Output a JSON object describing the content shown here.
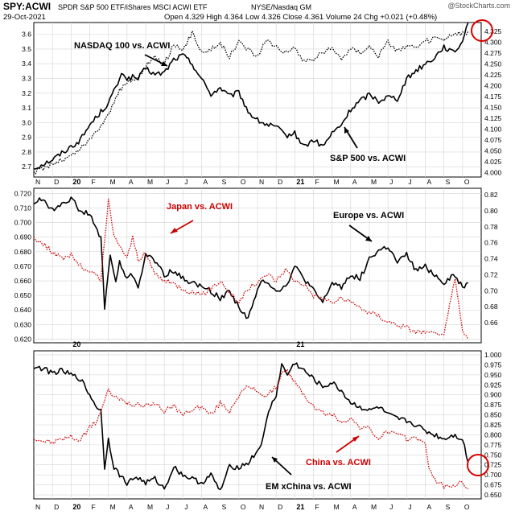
{
  "header": {
    "symbol": "SPY:ACWI",
    "description": "SPDR S&P 500 ETF/iShares MSCI ACWI ETF",
    "exchange": "NYSE/Nasdaq GM",
    "date": "29-Oct-2021",
    "open_label": "Open",
    "open": "4.329",
    "high_label": "High",
    "high": "4.364",
    "low_label": "Low",
    "low": "4.326",
    "close_label": "Close",
    "close": "4.361",
    "volume_label": "Volume",
    "volume": "24",
    "chg_label": "Chg",
    "chg": "+0.021 (+0.48%)",
    "watermark": "@StockCharts.com"
  },
  "colors": {
    "black_series": "#000000",
    "dotted_black": "#000000",
    "dotted_red": "#cc0000",
    "circle": "#dd0000",
    "grid": "#d4d4d4"
  },
  "x_axis": {
    "months": [
      "N",
      "D",
      "20",
      "F",
      "M",
      "A",
      "M",
      "J",
      "J",
      "A",
      "S",
      "O",
      "N",
      "D",
      "21",
      "F",
      "M",
      "A",
      "M",
      "J",
      "J",
      "A",
      "S",
      "O"
    ],
    "year_labels": [
      "20",
      "21"
    ]
  },
  "chart_data": [
    {
      "type": "line",
      "panel": "top",
      "title": "SPY:ACWI",
      "left_axis": {
        "ticks": [
          "2.7",
          "2.8",
          "2.9",
          "3.0",
          "3.1",
          "3.2",
          "3.3",
          "3.4",
          "3.5",
          "3.6"
        ],
        "range": [
          2.63,
          3.68
        ]
      },
      "right_axis": {
        "ticks": [
          "4.000",
          "4.025",
          "4.050",
          "4.075",
          "4.100",
          "4.125",
          "4.150",
          "4.175",
          "4.200",
          "4.225",
          "4.250",
          "4.275",
          "4.300",
          "4.325"
        ],
        "range": [
          3.99,
          4.345
        ]
      },
      "annotations": [
        "NASDAQ 100 vs. ACWI",
        "S&P 500 vs. ACWI"
      ],
      "series": [
        {
          "name": "S&P 500 vs. ACWI",
          "axis": "right",
          "style": "solid-black",
          "x": [
            0,
            1,
            2,
            2.5,
            3,
            4,
            4.5,
            4.8,
            5,
            5.3,
            5.6,
            6,
            6.5,
            7,
            7.5,
            8,
            8.5,
            9,
            9.5,
            10,
            10.5,
            11,
            11.5,
            12,
            12.5,
            13,
            13.5,
            14,
            14.5,
            15,
            15.5,
            16,
            16.5,
            17,
            17.5,
            18,
            18.5,
            19,
            19.5,
            20,
            20.5,
            21,
            21.5,
            22,
            22.5,
            23,
            23.3
          ],
          "values": [
            4.01,
            4.03,
            4.06,
            4.075,
            4.11,
            4.16,
            4.205,
            4.23,
            4.215,
            4.22,
            4.215,
            4.24,
            4.225,
            4.23,
            4.26,
            4.27,
            4.25,
            4.215,
            4.18,
            4.195,
            4.175,
            4.185,
            4.14,
            4.12,
            4.11,
            4.105,
            4.085,
            4.09,
            4.06,
            4.075,
            4.06,
            4.09,
            4.11,
            4.145,
            4.165,
            4.18,
            4.165,
            4.175,
            4.17,
            4.215,
            4.235,
            4.25,
            4.265,
            4.29,
            4.275,
            4.3,
            4.36
          ]
        },
        {
          "name": "NASDAQ 100 vs. ACWI",
          "axis": "left",
          "style": "dotted-black",
          "x": [
            0,
            1,
            2,
            3,
            4,
            4.5,
            5,
            5.5,
            6,
            6.5,
            7,
            7.5,
            8,
            8.5,
            9,
            9.5,
            10,
            10.5,
            11,
            11.5,
            12,
            12.5,
            13,
            13.5,
            14,
            14.5,
            15,
            15.5,
            16,
            16.5,
            17,
            17.5,
            18,
            18.5,
            19,
            19.5,
            20,
            20.5,
            21,
            21.5,
            22,
            22.5,
            23,
            23.3
          ],
          "values": [
            2.66,
            2.72,
            2.77,
            2.88,
            3.05,
            3.2,
            3.27,
            3.3,
            3.38,
            3.45,
            3.4,
            3.53,
            3.48,
            3.62,
            3.48,
            3.5,
            3.54,
            3.45,
            3.55,
            3.5,
            3.45,
            3.56,
            3.52,
            3.48,
            3.5,
            3.42,
            3.43,
            3.48,
            3.5,
            3.44,
            3.5,
            3.48,
            3.52,
            3.45,
            3.55,
            3.49,
            3.52,
            3.5,
            3.55,
            3.57,
            3.56,
            3.6,
            3.6,
            3.62
          ]
        }
      ]
    },
    {
      "type": "line",
      "panel": "middle",
      "left_axis": {
        "ticks": [
          "0.620",
          "0.630",
          "0.640",
          "0.650",
          "0.660",
          "0.670",
          "0.680",
          "0.690",
          "0.700",
          "0.710",
          "0.720"
        ],
        "range": [
          0.6175,
          0.7235
        ]
      },
      "right_axis": {
        "ticks": [
          "0.66",
          "0.68",
          "0.70",
          "0.72",
          "0.74",
          "0.76",
          "0.78",
          "0.80",
          "0.82"
        ],
        "range": [
          0.635,
          0.828
        ]
      },
      "annotations": [
        "Japan vs. ACWI",
        "Europe vs. ACWI"
      ],
      "series": [
        {
          "name": "Europe vs. ACWI",
          "axis": "right",
          "style": "solid-black",
          "x": [
            0,
            0.5,
            1,
            1.5,
            2,
            2.5,
            3,
            3.3,
            3.6,
            3.8,
            4.1,
            4.4,
            4.6,
            5,
            5.3,
            5.6,
            6,
            6.3,
            6.6,
            7,
            7.5,
            8,
            8.5,
            9,
            9.5,
            10,
            10.5,
            11,
            11.5,
            12,
            12.3,
            12.6,
            13,
            13.5,
            14,
            14.5,
            15,
            15.5,
            16,
            16.5,
            17,
            17.5,
            18,
            18.5,
            19,
            19.5,
            20,
            20.5,
            21,
            21.5,
            22,
            22.5,
            23,
            23.3
          ],
          "values": [
            0.81,
            0.815,
            0.8,
            0.81,
            0.815,
            0.8,
            0.795,
            0.78,
            0.765,
            0.68,
            0.745,
            0.71,
            0.735,
            0.715,
            0.72,
            0.705,
            0.745,
            0.74,
            0.735,
            0.72,
            0.725,
            0.715,
            0.71,
            0.705,
            0.7,
            0.69,
            0.7,
            0.68,
            0.665,
            0.7,
            0.715,
            0.71,
            0.7,
            0.705,
            0.73,
            0.715,
            0.7,
            0.685,
            0.71,
            0.705,
            0.72,
            0.715,
            0.74,
            0.75,
            0.755,
            0.735,
            0.745,
            0.725,
            0.73,
            0.72,
            0.71,
            0.72,
            0.705,
            0.71
          ]
        },
        {
          "name": "Japan vs. ACWI",
          "axis": "left",
          "style": "dotted-red",
          "x": [
            0,
            0.5,
            1,
            1.5,
            2,
            2.5,
            3,
            3.3,
            3.6,
            4,
            4.3,
            4.6,
            5,
            5.3,
            5.6,
            6,
            6.5,
            7,
            7.5,
            8,
            8.5,
            9,
            9.5,
            10,
            10.5,
            11,
            11.5,
            12,
            12.5,
            13,
            13.5,
            14,
            14.5,
            15,
            15.5,
            16,
            16.5,
            17,
            17.5,
            18,
            18.5,
            19,
            19.5,
            20,
            20.5,
            21,
            21.5,
            22,
            22.3,
            22.6,
            23,
            23.3
          ],
          "values": [
            0.69,
            0.685,
            0.68,
            0.675,
            0.678,
            0.67,
            0.665,
            0.665,
            0.66,
            0.715,
            0.69,
            0.685,
            0.675,
            0.69,
            0.675,
            0.678,
            0.665,
            0.66,
            0.658,
            0.655,
            0.652,
            0.65,
            0.655,
            0.66,
            0.652,
            0.645,
            0.655,
            0.658,
            0.665,
            0.66,
            0.668,
            0.66,
            0.658,
            0.65,
            0.648,
            0.645,
            0.648,
            0.645,
            0.642,
            0.638,
            0.636,
            0.632,
            0.63,
            0.628,
            0.625,
            0.625,
            0.623,
            0.622,
            0.645,
            0.66,
            0.625,
            0.62
          ]
        }
      ]
    },
    {
      "type": "line",
      "panel": "bottom",
      "right_axis": {
        "ticks": [
          "0.650",
          "0.675",
          "0.700",
          "0.725",
          "0.750",
          "0.775",
          "0.800",
          "0.825",
          "0.850",
          "0.875",
          "0.900",
          "0.925",
          "0.950",
          "0.975",
          "1.000"
        ],
        "range": [
          0.64,
          1.01
        ]
      },
      "annotations": [
        "China vs. ACWI",
        "EM xChina vs. ACWI"
      ],
      "series": [
        {
          "name": "EM xChina vs. ACWI",
          "axis": "right",
          "style": "solid-black",
          "x": [
            0,
            0.5,
            1,
            1.5,
            2,
            2.5,
            3,
            3.3,
            3.6,
            3.8,
            4,
            4.3,
            4.6,
            5,
            5.5,
            6,
            6.5,
            7,
            7.5,
            8,
            8.5,
            9,
            9.5,
            10,
            10.5,
            11,
            11.5,
            12,
            12.3,
            12.6,
            13,
            13.3,
            13.6,
            14,
            14.5,
            15,
            15.5,
            16,
            16.5,
            17,
            17.5,
            18,
            18.5,
            19,
            19.5,
            20,
            20.5,
            21,
            21.5,
            22,
            22.5,
            23,
            23.3
          ],
          "values": [
            0.97,
            0.965,
            0.955,
            0.96,
            0.95,
            0.94,
            0.9,
            0.875,
            0.86,
            0.72,
            0.79,
            0.72,
            0.7,
            0.68,
            0.695,
            0.68,
            0.69,
            0.665,
            0.72,
            0.7,
            0.69,
            0.68,
            0.7,
            0.66,
            0.72,
            0.72,
            0.73,
            0.76,
            0.79,
            0.86,
            0.9,
            0.975,
            0.95,
            0.98,
            0.96,
            0.94,
            0.92,
            0.93,
            0.91,
            0.88,
            0.87,
            0.86,
            0.87,
            0.85,
            0.84,
            0.835,
            0.825,
            0.81,
            0.8,
            0.79,
            0.8,
            0.79,
            0.73
          ]
        },
        {
          "name": "China vs. ACWI",
          "axis": "right",
          "style": "dotted-red",
          "x": [
            0,
            0.5,
            1,
            1.5,
            2,
            2.5,
            3,
            3.3,
            3.6,
            4,
            4.5,
            5,
            5.5,
            6,
            6.5,
            7,
            7.5,
            8,
            8.5,
            9,
            9.5,
            10,
            10.5,
            11,
            11.5,
            12,
            12.5,
            13,
            13.3,
            13.6,
            14,
            14.5,
            15,
            15.5,
            16,
            16.5,
            17,
            17.5,
            18,
            18.5,
            19,
            19.5,
            20,
            20.5,
            21,
            21.2,
            21.5,
            22,
            22.5,
            23,
            23.3
          ],
          "values": [
            0.79,
            0.785,
            0.78,
            0.79,
            0.795,
            0.785,
            0.82,
            0.83,
            0.86,
            0.91,
            0.89,
            0.88,
            0.875,
            0.87,
            0.88,
            0.86,
            0.87,
            0.85,
            0.865,
            0.87,
            0.85,
            0.88,
            0.86,
            0.9,
            0.92,
            0.91,
            0.895,
            0.92,
            0.95,
            0.96,
            0.93,
            0.9,
            0.87,
            0.855,
            0.85,
            0.835,
            0.84,
            0.82,
            0.815,
            0.79,
            0.81,
            0.8,
            0.79,
            0.795,
            0.775,
            0.72,
            0.69,
            0.67,
            0.675,
            0.68,
            0.665
          ]
        }
      ]
    }
  ]
}
